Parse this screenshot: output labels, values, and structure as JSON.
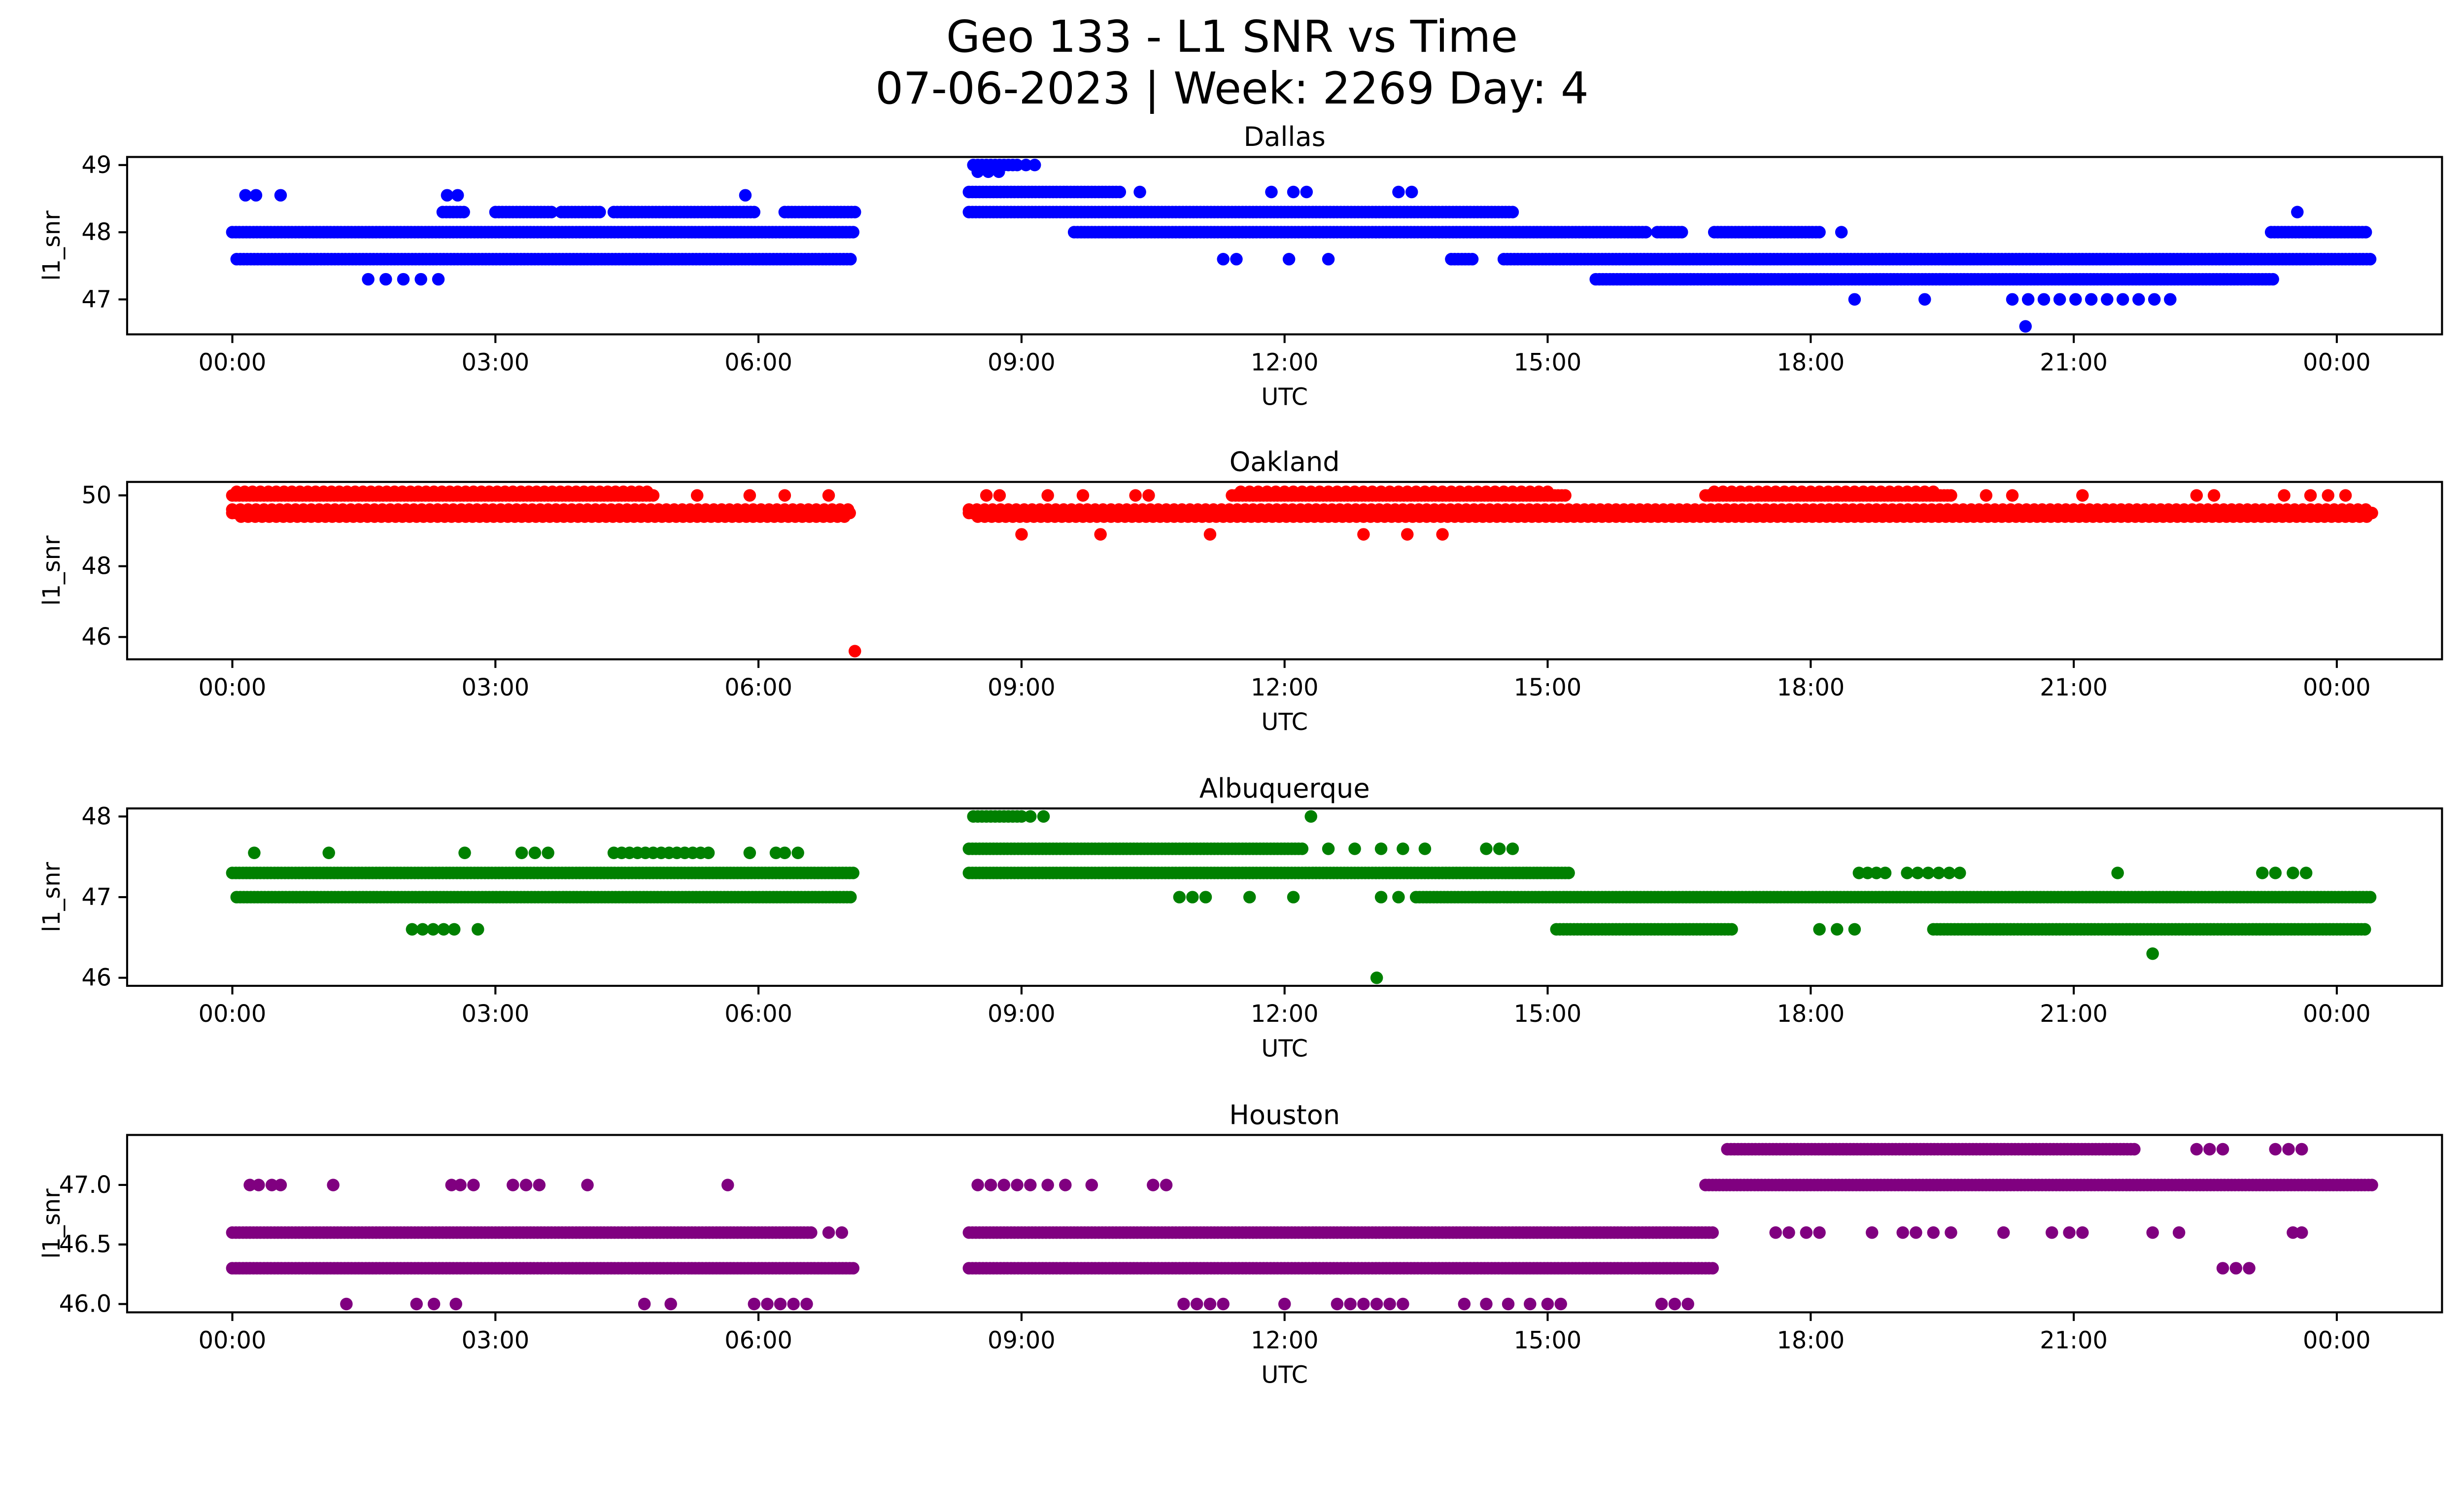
{
  "figure": {
    "title": "Geo 133 - L1 SNR vs Time",
    "subtitle": "07-06-2023 | Week: 2269 Day: 4"
  },
  "chart_data": [
    {
      "type": "scatter",
      "title": "Dallas",
      "color": "#0000ff",
      "xlabel": "UTC",
      "ylabel": "l1_snr",
      "xlim": [
        -1.2,
        25.2
      ],
      "ylim": [
        46.48,
        49.12
      ],
      "xticks": [
        0,
        3,
        6,
        9,
        12,
        15,
        18,
        21,
        24
      ],
      "xtick_labels": [
        "00:00",
        "03:00",
        "06:00",
        "09:00",
        "12:00",
        "15:00",
        "18:00",
        "21:00",
        "00:00"
      ],
      "yticks": [
        47,
        48,
        49
      ],
      "ytick_labels": [
        "47",
        "48",
        "49"
      ],
      "marker_size": 8,
      "rows": [
        {
          "y": 49.0,
          "spans": [
            [
              8.45,
              8.95,
              0.05
            ]
          ],
          "xs": [
            9.05,
            9.15
          ]
        },
        {
          "y": 48.9,
          "xs": [
            8.5,
            8.62,
            8.74
          ]
        },
        {
          "y": 48.6,
          "spans": [
            [
              8.4,
              10.15
            ]
          ],
          "xs": [
            10.35,
            11.85,
            12.1,
            12.25,
            13.3,
            13.45
          ]
        },
        {
          "y": 48.55,
          "xs": [
            0.15,
            0.27,
            0.55,
            2.45,
            2.57,
            5.85
          ]
        },
        {
          "y": 48.3,
          "spans": [
            [
              2.4,
              2.65
            ],
            [
              3.0,
              3.65
            ],
            [
              3.75,
              4.2
            ],
            [
              4.35,
              5.95
            ],
            [
              6.3,
              7.1
            ],
            [
              8.4,
              14.6
            ]
          ],
          "xs": [
            23.55
          ]
        },
        {
          "y": 48.0,
          "spans": [
            [
              0.0,
              7.1
            ],
            [
              9.6,
              16.15
            ],
            [
              16.25,
              16.55
            ],
            [
              16.9,
              18.1
            ],
            [
              23.25,
              24.35
            ]
          ],
          "xs": [
            18.35
          ]
        },
        {
          "y": 47.6,
          "spans": [
            [
              0.05,
              7.05
            ],
            [
              13.9,
              14.15
            ],
            [
              14.5,
              24.4
            ]
          ],
          "xs": [
            11.3,
            11.45,
            12.05,
            12.5
          ]
        },
        {
          "y": 47.3,
          "spans": [
            [
              1.55,
              2.35,
              0.2
            ],
            [
              15.55,
              23.3
            ]
          ]
        },
        {
          "y": 47.0,
          "spans": [
            [
              20.3,
              22.1,
              0.18
            ]
          ],
          "xs": [
            18.5,
            19.3
          ]
        }
      ],
      "outliers": [
        [
          20.45,
          46.6
        ]
      ]
    },
    {
      "type": "scatter",
      "title": "Oakland",
      "color": "#ff0000",
      "xlabel": "UTC",
      "ylabel": "l1_snr",
      "xlim": [
        -1.2,
        25.2
      ],
      "ylim": [
        45.37,
        50.38
      ],
      "xticks": [
        0,
        3,
        6,
        9,
        12,
        15,
        18,
        21,
        24
      ],
      "xtick_labels": [
        "00:00",
        "03:00",
        "06:00",
        "09:00",
        "12:00",
        "15:00",
        "18:00",
        "21:00",
        "00:00"
      ],
      "yticks": [
        46,
        48,
        50
      ],
      "ytick_labels": [
        "46",
        "48",
        "50"
      ],
      "marker_size": 8,
      "rows": [
        {
          "y": 50.1,
          "spans": [
            [
              0.05,
              4.75,
              0.09
            ],
            [
              11.5,
              15.0,
              0.1
            ],
            [
              16.9,
              19.4,
              0.1
            ]
          ]
        },
        {
          "y": 50.0,
          "spans": [
            [
              0.0,
              4.8
            ],
            [
              11.4,
              15.2
            ],
            [
              16.8,
              19.6
            ]
          ],
          "xs": [
            5.3,
            5.9,
            6.3,
            6.8,
            8.6,
            8.75,
            9.3,
            9.7,
            10.3,
            10.45,
            20.0,
            20.3,
            21.1,
            22.4,
            22.6,
            23.4,
            23.7,
            23.9,
            24.1
          ]
        },
        {
          "y": 49.6,
          "spans": [
            [
              0.0,
              7.05,
              0.09
            ],
            [
              8.4,
              24.4,
              0.09
            ]
          ]
        },
        {
          "y": 49.5,
          "spans": [
            [
              0.0,
              7.05
            ],
            [
              8.4,
              24.4
            ]
          ]
        },
        {
          "y": 49.4,
          "spans": [
            [
              0.1,
              7.0,
              0.08
            ],
            [
              8.5,
              24.35,
              0.08
            ]
          ]
        },
        {
          "y": 48.9,
          "xs": [
            9.0,
            9.9,
            11.15,
            12.9,
            13.4,
            13.8
          ]
        }
      ],
      "outliers": [
        [
          7.1,
          45.6
        ]
      ]
    },
    {
      "type": "scatter",
      "title": "Albuquerque",
      "color": "#008000",
      "xlabel": "UTC",
      "ylabel": "l1_snr",
      "xlim": [
        -1.2,
        25.2
      ],
      "ylim": [
        45.9,
        48.1
      ],
      "xticks": [
        0,
        3,
        6,
        9,
        12,
        15,
        18,
        21,
        24
      ],
      "xtick_labels": [
        "00:00",
        "03:00",
        "06:00",
        "09:00",
        "12:00",
        "15:00",
        "18:00",
        "21:00",
        "00:00"
      ],
      "yticks": [
        46,
        47,
        48
      ],
      "ytick_labels": [
        "46",
        "47",
        "48"
      ],
      "marker_size": 8,
      "rows": [
        {
          "y": 48.0,
          "spans": [
            [
              8.45,
              9.0,
              0.05
            ]
          ],
          "xs": [
            9.1,
            9.25,
            12.3
          ]
        },
        {
          "y": 47.6,
          "spans": [
            [
              8.4,
              12.2
            ]
          ],
          "xs": [
            12.5,
            12.8,
            13.1,
            13.35,
            13.6,
            14.3,
            14.45,
            14.6
          ]
        },
        {
          "y": 47.55,
          "spans": [
            [
              4.35,
              5.5,
              0.09
            ]
          ],
          "xs": [
            0.25,
            1.1,
            2.65,
            3.3,
            3.45,
            3.6,
            5.9,
            6.2,
            6.3,
            6.45
          ]
        },
        {
          "y": 47.3,
          "spans": [
            [
              0.0,
              7.1
            ],
            [
              8.4,
              15.25
            ],
            [
              18.55,
              18.85,
              0.1
            ],
            [
              19.1,
              19.75,
              0.12
            ]
          ],
          "xs": [
            21.5,
            23.15,
            23.3,
            23.5,
            23.65
          ]
        },
        {
          "y": 47.0,
          "spans": [
            [
              0.05,
              7.05
            ],
            [
              13.5,
              24.4
            ]
          ],
          "xs": [
            10.8,
            10.95,
            11.1,
            11.6,
            12.1,
            13.1,
            13.3
          ]
        },
        {
          "y": 46.6,
          "spans": [
            [
              2.05,
              2.55,
              0.12
            ],
            [
              15.1,
              17.1
            ],
            [
              19.4,
              24.35
            ]
          ],
          "xs": [
            2.8,
            18.1,
            18.3,
            18.5
          ]
        },
        {
          "y": 46.3,
          "xs": [
            21.9
          ]
        }
      ],
      "outliers": [
        [
          13.05,
          46.0
        ]
      ]
    },
    {
      "type": "scatter",
      "title": "Houston",
      "color": "#800080",
      "xlabel": "UTC",
      "ylabel": "l1_snr",
      "xlim": [
        -1.2,
        25.2
      ],
      "ylim": [
        45.93,
        47.42
      ],
      "xticks": [
        0,
        3,
        6,
        9,
        12,
        15,
        18,
        21,
        24
      ],
      "xtick_labels": [
        "00:00",
        "03:00",
        "06:00",
        "09:00",
        "12:00",
        "15:00",
        "18:00",
        "21:00",
        "00:00"
      ],
      "yticks": [
        46.0,
        46.5,
        47.0
      ],
      "ytick_labels": [
        "46.0",
        "46.5",
        "47.0"
      ],
      "marker_size": 8,
      "rows": [
        {
          "y": 47.3,
          "spans": [
            [
              17.05,
              21.7
            ]
          ],
          "xs": [
            22.4,
            22.55,
            22.7,
            23.3,
            23.45,
            23.6
          ]
        },
        {
          "y": 47.0,
          "spans": [
            [
              16.8,
              24.4
            ]
          ],
          "xs": [
            0.2,
            0.3,
            0.45,
            0.55,
            1.15,
            2.5,
            2.6,
            2.75,
            3.2,
            3.35,
            3.5,
            4.05,
            5.65,
            8.5,
            8.65,
            8.8,
            8.95,
            9.1,
            9.3,
            9.5,
            9.8,
            10.5,
            10.65
          ]
        },
        {
          "y": 46.6,
          "spans": [
            [
              0.0,
              6.6
            ],
            [
              8.4,
              16.9
            ]
          ],
          "xs": [
            6.8,
            6.95,
            17.6,
            17.75,
            17.95,
            18.1,
            18.7,
            19.05,
            19.2,
            19.4,
            19.6,
            20.2,
            20.75,
            20.95,
            21.1,
            21.9,
            22.2,
            23.5,
            23.6
          ]
        },
        {
          "y": 46.3,
          "spans": [
            [
              0.0,
              7.1
            ],
            [
              8.4,
              16.9
            ]
          ],
          "xs": [
            22.7,
            22.85,
            23.0
          ]
        },
        {
          "y": 46.0,
          "xs": [
            1.3,
            2.1,
            2.3,
            2.55,
            4.7,
            5.0,
            5.95,
            6.1,
            6.25,
            6.4,
            6.55,
            10.85,
            11.0,
            11.15,
            11.3,
            12.0,
            12.6,
            12.75,
            12.9,
            13.05,
            13.2,
            13.35,
            14.05,
            14.3,
            14.55,
            14.8,
            15.0,
            15.15,
            16.3,
            16.45,
            16.6
          ]
        }
      ],
      "outliers": []
    }
  ]
}
